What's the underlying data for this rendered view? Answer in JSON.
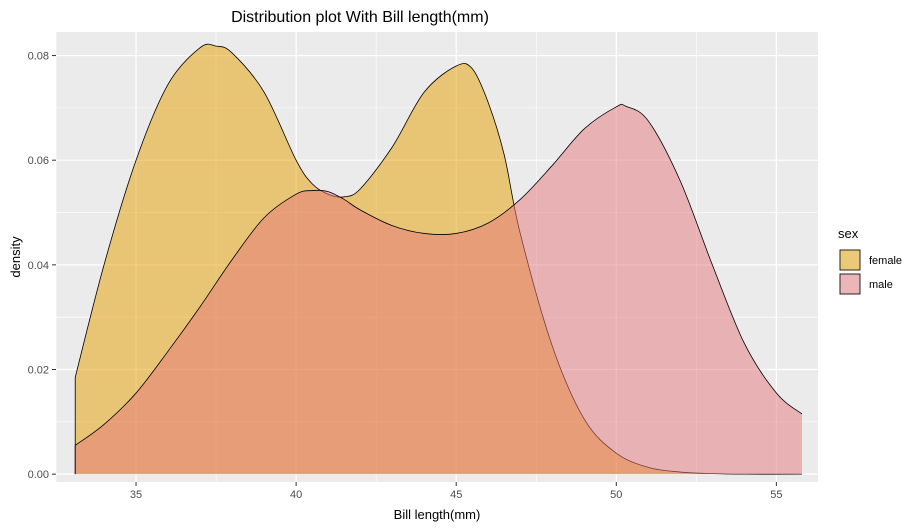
{
  "chart_data": {
    "type": "area",
    "title": "Distribution plot With Bill length(mm)",
    "xlabel": "Bill length(mm)",
    "ylabel": "density",
    "xlim": [
      32.5,
      56.3
    ],
    "ylim": [
      -0.0015,
      0.0845
    ],
    "x_ticks": [
      35,
      40,
      45,
      50,
      55
    ],
    "y_ticks": [
      0.0,
      0.02,
      0.04,
      0.06,
      0.08
    ],
    "x_tick_labels": [
      "35",
      "40",
      "45",
      "50",
      "55"
    ],
    "y_tick_labels": [
      "0.00",
      "0.02",
      "0.04",
      "0.06",
      "0.08"
    ],
    "grid": true,
    "legend": {
      "title": "sex",
      "position": "right",
      "entries": [
        {
          "label": "female",
          "color": "#e69f00"
        },
        {
          "label": "male",
          "color": "#e5777b"
        }
      ]
    },
    "series": [
      {
        "name": "female",
        "color": "#e69f00",
        "x": [
          33.1,
          34.0,
          35.0,
          36.0,
          37.0,
          37.5,
          38.0,
          39.0,
          40.0,
          40.5,
          41.0,
          41.5,
          42.0,
          43.0,
          44.0,
          45.0,
          45.5,
          46.0,
          46.5,
          47.0,
          48.0,
          49.0,
          50.0,
          51.0,
          52.0,
          53.0,
          54.0,
          55.8
        ],
        "values": [
          0.0185,
          0.04,
          0.06,
          0.0745,
          0.0815,
          0.0818,
          0.0805,
          0.073,
          0.06,
          0.0555,
          0.0535,
          0.053,
          0.0545,
          0.0625,
          0.073,
          0.078,
          0.0775,
          0.071,
          0.061,
          0.046,
          0.0245,
          0.0105,
          0.004,
          0.0013,
          0.0004,
          0.0001,
          0.0,
          0.0
        ]
      },
      {
        "name": "male",
        "color": "#e5777b",
        "x": [
          33.1,
          34.0,
          35.0,
          36.0,
          37.0,
          38.0,
          39.0,
          40.0,
          40.5,
          41.0,
          41.5,
          42.0,
          43.0,
          44.0,
          45.0,
          46.0,
          47.0,
          48.0,
          49.0,
          50.0,
          50.3,
          51.0,
          52.0,
          53.0,
          54.0,
          55.0,
          55.8
        ],
        "values": [
          0.0055,
          0.0095,
          0.0155,
          0.0235,
          0.032,
          0.041,
          0.049,
          0.0535,
          0.0542,
          0.054,
          0.0525,
          0.0505,
          0.0475,
          0.046,
          0.046,
          0.048,
          0.0525,
          0.059,
          0.066,
          0.0702,
          0.0703,
          0.0675,
          0.056,
          0.04,
          0.025,
          0.0155,
          0.0115
        ]
      }
    ]
  }
}
